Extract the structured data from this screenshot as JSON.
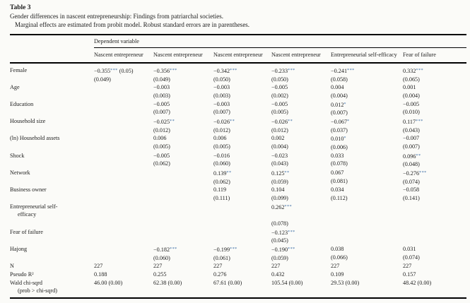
{
  "header": {
    "table_label": "Table 3",
    "caption": "Gender differences in nascent entrepreneurship: Findings from patriarchal societies.",
    "note": "Marginal effects are estimated from probit model. Robust standard errors are in parentheses."
  },
  "colors": {
    "background": "#fbfbf8",
    "text": "#1c1c1c",
    "rule": "#000000",
    "significance_stars": "#3d6ea6"
  },
  "table": {
    "dependent_variable_label": "Dependent variable",
    "columns": [
      "Nascent entrepreneur",
      "Nascent entrepreneur",
      "Nascent entrepreneur",
      "Nascent entrepreneur",
      "Entrepreneurial self-efficacy",
      "Fear of failure"
    ],
    "rows": [
      {
        "label": "Female",
        "cells": [
          {
            "v": "−0.355*** (0.05)",
            "s": "(0.049)"
          },
          {
            "v": "−0.356***",
            "s": "(0.049)"
          },
          {
            "v": "−0.342***",
            "s": "(0.050)"
          },
          {
            "v": "−0.233***",
            "s": "(0.050)"
          },
          {
            "v": "−0.241***",
            "s": "(0.058)"
          },
          {
            "v": "0.332***",
            "s": "(0.065)"
          }
        ]
      },
      {
        "label": "Age",
        "cells": [
          null,
          {
            "v": "−0.003",
            "s": "(0.003)"
          },
          {
            "v": "−0.003",
            "s": "(0.003)"
          },
          {
            "v": "−0.005",
            "s": "(0.002)"
          },
          {
            "v": "0.004",
            "s": "(0.004)"
          },
          {
            "v": "0.001",
            "s": "(0.004)"
          }
        ]
      },
      {
        "label": "Education",
        "cells": [
          null,
          {
            "v": "−0.005",
            "s": "(0.007)"
          },
          {
            "v": "−0.003",
            "s": "(0.007)"
          },
          {
            "v": "−0.005",
            "s": "(0.005)"
          },
          {
            "v": "0.012*",
            "s": "(0.007)"
          },
          {
            "v": "−0.005",
            "s": "(0.010)"
          }
        ]
      },
      {
        "label": "Household size",
        "cells": [
          null,
          {
            "v": "−0.025**",
            "s": "(0.012)"
          },
          {
            "v": "−0.026**",
            "s": "(0.012)"
          },
          {
            "v": "−0.026**",
            "s": "(0.012)"
          },
          {
            "v": "−0.067*",
            "s": "(0.037)"
          },
          {
            "v": "0.117***",
            "s": "(0.043)"
          }
        ]
      },
      {
        "label": "(ln) Household assets",
        "cells": [
          null,
          {
            "v": "0.006",
            "s": "(0.005)"
          },
          {
            "v": "0.006",
            "s": "(0.005)"
          },
          {
            "v": "0.002",
            "s": "(0.004)"
          },
          {
            "v": "0.010*",
            "s": "(0.006)"
          },
          {
            "v": "−0.007",
            "s": "(0.007)"
          }
        ]
      },
      {
        "label": "Shock",
        "cells": [
          null,
          {
            "v": "−0.005",
            "s": "(0.062)"
          },
          {
            "v": "−0.016",
            "s": "(0.060)"
          },
          {
            "v": "−0.023",
            "s": "(0.043)"
          },
          {
            "v": "0.033",
            "s": "(0.078)"
          },
          {
            "v": "0.096**",
            "s": "(0.048)"
          }
        ]
      },
      {
        "label": "Network",
        "cells": [
          null,
          null,
          {
            "v": "0.139**",
            "s": "(0.062)"
          },
          {
            "v": "0.125**",
            "s": "(0.059)"
          },
          {
            "v": "0.067",
            "s": "(0.081)"
          },
          {
            "v": "−0.276***",
            "s": "(0.074)"
          }
        ]
      },
      {
        "label": "Business owner",
        "cells": [
          null,
          null,
          {
            "v": "0.119",
            "s": "(0.111)"
          },
          {
            "v": "0.104",
            "s": "(0.099)"
          },
          {
            "v": "0.034",
            "s": "(0.112)"
          },
          {
            "v": "−0.058",
            "s": "(0.141)"
          }
        ]
      },
      {
        "label": "Entrepreneurial self-",
        "label2": "efficacy",
        "cells": [
          null,
          null,
          null,
          {
            "v": "0.262***",
            "s": "(0.078)",
            "pad": true
          },
          null,
          null
        ]
      },
      {
        "label": "Fear of failure",
        "cells": [
          null,
          null,
          null,
          {
            "v": "−0.123***",
            "s": "(0.045)"
          },
          null,
          null
        ]
      },
      {
        "label": "Hajong",
        "cells": [
          null,
          {
            "v": "−0.182***",
            "s": "(0.060)"
          },
          {
            "v": "−0.199***",
            "s": "(0.061)"
          },
          {
            "v": "−0.190***",
            "s": "(0.059)"
          },
          {
            "v": "0.038",
            "s": "(0.066)"
          },
          {
            "v": "0.031",
            "s": "(0.074)"
          }
        ]
      },
      {
        "label": "N",
        "cells": [
          {
            "v": "227"
          },
          {
            "v": "227"
          },
          {
            "v": "227"
          },
          {
            "v": "227"
          },
          {
            "v": "227"
          },
          {
            "v": "227"
          }
        ]
      },
      {
        "label": "Pseudo R²",
        "cells": [
          {
            "v": "0.188"
          },
          {
            "v": "0.255"
          },
          {
            "v": "0.276"
          },
          {
            "v": "0.432"
          },
          {
            "v": "0.109"
          },
          {
            "v": "0.157"
          }
        ]
      },
      {
        "label": "Wald chi-sqrd",
        "label2": "(prob > chi-sqrd)",
        "cells": [
          {
            "v": "46.00 (0.00)"
          },
          {
            "v": "62.38 (0.00)"
          },
          {
            "v": "67.61 (0.00)"
          },
          {
            "v": "105.54 (0.00)"
          },
          {
            "v": "29.53 (0.00)"
          },
          {
            "v": "48.42 (0.00)"
          }
        ]
      }
    ]
  }
}
